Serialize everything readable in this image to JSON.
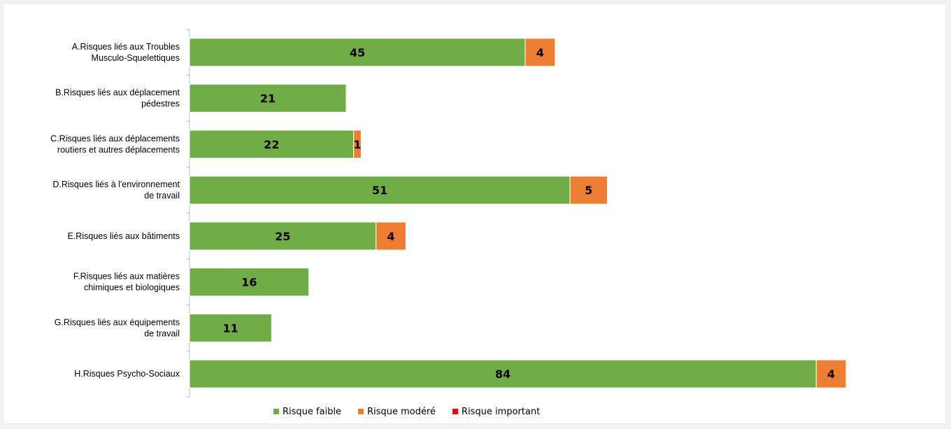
{
  "chart_data": {
    "type": "bar",
    "orientation": "horizontal",
    "stacked": true,
    "categories": [
      [
        "A.Risques liés aux Troubles",
        "Musculo-Squelettiques"
      ],
      [
        "B.Risques liés aux déplacement",
        "pédestres"
      ],
      [
        "C.Risques liés aux déplacements",
        "routiers et autres déplacements"
      ],
      [
        "D.Risques liés à l'environnement",
        "de travail"
      ],
      [
        "E.Risques liés aux bâtiments"
      ],
      [
        "F.Risques liés aux matières",
        "chimiques et biologiques"
      ],
      [
        "G.Risques liés aux équipements",
        "de travail"
      ],
      [
        "H.Risques Psycho-Sociaux"
      ]
    ],
    "series": [
      {
        "name": "Risque faible",
        "color": "#70ad47",
        "values": [
          45,
          21,
          22,
          51,
          25,
          16,
          11,
          84
        ]
      },
      {
        "name": "Risque modéré",
        "color": "#ed7d31",
        "values": [
          4,
          0,
          1,
          5,
          4,
          0,
          0,
          4
        ]
      },
      {
        "name": "Risque important",
        "color": "#ff0000",
        "values": [
          0,
          0,
          0,
          0,
          0,
          0,
          0,
          0
        ]
      }
    ],
    "xlim": [
      0,
      100
    ],
    "grid": false,
    "legend": "bottom",
    "data_labels": true
  }
}
